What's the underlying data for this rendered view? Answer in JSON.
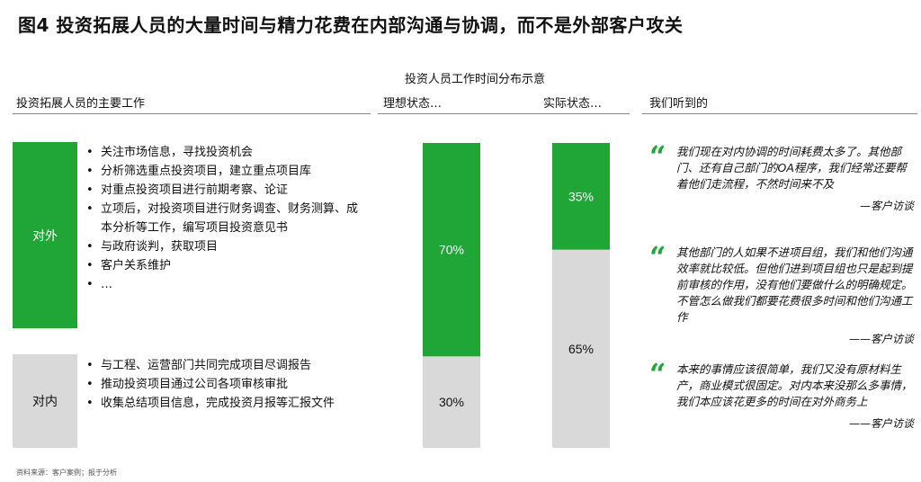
{
  "title": "图4 投资拓展人员的大量时间与精力花费在内部沟通与协调，而不是外部客户攻关",
  "left_section": {
    "heading": "投资拓展人员的主要工作",
    "groups": [
      {
        "label": "对外",
        "items": [
          "关注市场信息，寻找投资机会",
          "分析筛选重点投资项目，建立重点项目库",
          "对重点投资项目进行前期考察、论证",
          "立项后，对投资项目进行财务调查、财务测算、成本分析等工作，编写项目投资意见书",
          "与政府谈判，获取项目",
          "客户关系维护",
          "…"
        ]
      },
      {
        "label": "对内",
        "items": [
          "与工程、运营部门共同完成项目尽调报告",
          "推动投资项目通过公司各项审核审批",
          "收集总结项目信息，完成投资月报等汇报文件"
        ]
      }
    ]
  },
  "chart_data": {
    "type": "bar",
    "stacked": true,
    "title": "投资人员工作时间分布示意",
    "categories": [
      "理想状态…",
      "实际状态…"
    ],
    "series": [
      {
        "color": "#d9d9d9",
        "values": [
          30,
          65
        ],
        "labels": [
          "30%",
          "65%"
        ]
      },
      {
        "color": "#1fa637",
        "values": [
          70,
          35
        ],
        "labels": [
          "70%",
          "35%"
        ]
      }
    ],
    "ylim": [
      0,
      100
    ],
    "grid": false,
    "legend": "none"
  },
  "right_section": {
    "heading": "我们听到的",
    "quotes": [
      {
        "text": "我们现在对内协调的时间耗费太多了。其他部门、还有自己部门的OA程序，我们经常还要帮着他们走流程，不然时间来不及",
        "source": "—客户访谈"
      },
      {
        "text": "其他部门的人如果不进项目组，我们和他们沟通效率就比较低。但他们进到项目组也只是起到提前审核的作用，没有他们要做什么的明确规定。不管怎么做我们都要花费很多时间和他们沟通工作",
        "source": "——客户访谈"
      },
      {
        "text": "本来的事情应该很简单，我们又没有原材料生产，商业模式很固定。对内本来没那么多事情，我们本应该花更多的时间在对外商务上",
        "source": "——客户访谈"
      }
    ]
  },
  "footer": {
    "source": "资料来源：客户案例；报于分析"
  },
  "colors": {
    "accent": "#1fa637",
    "neutral": "#d9d9d9"
  }
}
